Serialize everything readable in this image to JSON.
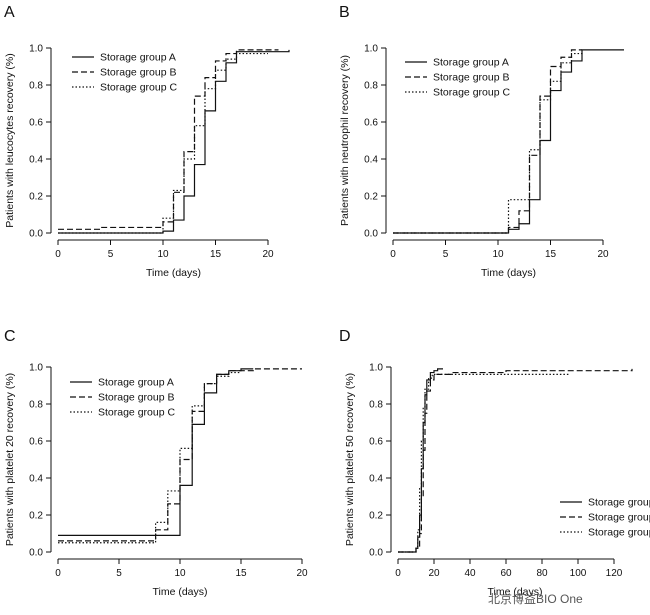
{
  "watermark": "北京博益BIO One",
  "chart_data": [
    {
      "type": "line",
      "step": true,
      "panel": "A",
      "xlabel": "Time (days)",
      "ylabel": "Patients with leucocytes recovery (%)",
      "xlim": [
        0,
        22
      ],
      "ylim": [
        0,
        1
      ],
      "xticks": [
        0,
        5,
        10,
        15,
        20
      ],
      "yticks": [
        0.0,
        0.2,
        0.4,
        0.6,
        0.8,
        1.0
      ],
      "xtick_labels": [
        "0",
        "5",
        "10",
        "15",
        "20"
      ],
      "ytick_labels": [
        "0.0",
        "0.2",
        "0.4",
        "0.6",
        "0.8",
        "1.0"
      ],
      "legend_position": "top-left",
      "series": [
        {
          "name": "Storage group A",
          "dash": "solid",
          "x": [
            0,
            10,
            11,
            12,
            13,
            14,
            15,
            16,
            17,
            22
          ],
          "y": [
            0.0,
            0.01,
            0.07,
            0.2,
            0.37,
            0.66,
            0.82,
            0.92,
            0.98,
            0.99
          ]
        },
        {
          "name": "Storage group B",
          "dash": "dashed",
          "x": [
            0,
            4,
            10,
            11,
            12,
            13,
            14,
            15,
            16,
            17,
            21
          ],
          "y": [
            0.02,
            0.03,
            0.06,
            0.22,
            0.44,
            0.74,
            0.84,
            0.93,
            0.97,
            0.99,
            0.99
          ]
        },
        {
          "name": "Storage group C",
          "dash": "dotted",
          "x": [
            0,
            10,
            11,
            12,
            13,
            14,
            15,
            16,
            17,
            20
          ],
          "y": [
            0.0,
            0.08,
            0.23,
            0.4,
            0.58,
            0.78,
            0.88,
            0.94,
            0.97,
            0.97
          ]
        }
      ]
    },
    {
      "type": "line",
      "step": true,
      "panel": "B",
      "xlabel": "Time (days)",
      "ylabel": "Patients with neutrophil recovery (%)",
      "xlim": [
        0,
        22
      ],
      "ylim": [
        0,
        1
      ],
      "xticks": [
        0,
        5,
        10,
        15,
        20
      ],
      "yticks": [
        0.0,
        0.2,
        0.4,
        0.6,
        0.8,
        1.0
      ],
      "xtick_labels": [
        "0",
        "5",
        "10",
        "15",
        "20"
      ],
      "ytick_labels": [
        "0.0",
        "0.2",
        "0.4",
        "0.6",
        "0.8",
        "1.0"
      ],
      "legend_position": "top-left",
      "series": [
        {
          "name": "Storage group A",
          "dash": "solid",
          "x": [
            0,
            11,
            12,
            13,
            14,
            15,
            16,
            17,
            18,
            22
          ],
          "y": [
            0.0,
            0.02,
            0.05,
            0.18,
            0.5,
            0.77,
            0.87,
            0.93,
            0.99,
            0.99
          ]
        },
        {
          "name": "Storage group B",
          "dash": "dashed",
          "x": [
            0,
            11,
            12,
            13,
            14,
            15,
            16,
            17,
            18
          ],
          "y": [
            0.0,
            0.03,
            0.12,
            0.42,
            0.74,
            0.9,
            0.95,
            0.99,
            0.99
          ]
        },
        {
          "name": "Storage group C",
          "dash": "dotted",
          "x": [
            0,
            11,
            13,
            14,
            15,
            16,
            17,
            18
          ],
          "y": [
            0.0,
            0.18,
            0.45,
            0.72,
            0.82,
            0.92,
            0.97,
            0.98
          ]
        }
      ]
    },
    {
      "type": "line",
      "step": true,
      "panel": "C",
      "xlabel": "Time (days)",
      "ylabel": "Patients with platelet 20 recovery (%)",
      "xlim": [
        0,
        20
      ],
      "ylim": [
        0,
        1
      ],
      "xticks": [
        0,
        5,
        10,
        15,
        20
      ],
      "yticks": [
        0.0,
        0.2,
        0.4,
        0.6,
        0.8,
        1.0
      ],
      "xtick_labels": [
        "0",
        "5",
        "10",
        "15",
        "20"
      ],
      "ytick_labels": [
        "0.0",
        "0.2",
        "0.4",
        "0.6",
        "0.8",
        "1.0"
      ],
      "legend_position": "top-left",
      "series": [
        {
          "name": "Storage group A",
          "dash": "solid",
          "x": [
            0,
            9,
            10,
            11,
            12,
            13,
            14,
            15,
            16
          ],
          "y": [
            0.09,
            0.09,
            0.36,
            0.69,
            0.86,
            0.96,
            0.98,
            0.99,
            0.99
          ]
        },
        {
          "name": "Storage group B",
          "dash": "dashed",
          "x": [
            0,
            8,
            9,
            10,
            11,
            12,
            13,
            14,
            16,
            20
          ],
          "y": [
            0.06,
            0.12,
            0.26,
            0.5,
            0.76,
            0.91,
            0.96,
            0.98,
            0.99,
            0.99
          ]
        },
        {
          "name": "Storage group C",
          "dash": "dotted",
          "x": [
            0,
            8,
            9,
            10,
            11,
            12,
            13,
            14,
            15
          ],
          "y": [
            0.05,
            0.16,
            0.33,
            0.56,
            0.79,
            0.91,
            0.95,
            0.97,
            0.97
          ]
        }
      ]
    },
    {
      "type": "line",
      "step": true,
      "panel": "D",
      "xlabel": "Time (days)",
      "ylabel": "Patients with platelet 50 recovery (%)",
      "xlim": [
        0,
        130
      ],
      "ylim": [
        0,
        1
      ],
      "xticks": [
        0,
        20,
        40,
        60,
        80,
        100,
        120
      ],
      "yticks": [
        0.0,
        0.2,
        0.4,
        0.6,
        0.8,
        1.0
      ],
      "xtick_labels": [
        "0",
        "20",
        "40",
        "60",
        "80",
        "100",
        "120"
      ],
      "ytick_labels": [
        "0.0",
        "0.2",
        "0.4",
        "0.6",
        "0.8",
        "1.0"
      ],
      "legend_position": "bottom-right",
      "series": [
        {
          "name": "Storage group",
          "dash": "solid",
          "x": [
            0,
            10,
            11,
            12,
            13,
            14,
            15,
            16,
            18,
            20,
            22,
            25
          ],
          "y": [
            0.0,
            0.02,
            0.08,
            0.2,
            0.45,
            0.7,
            0.85,
            0.93,
            0.97,
            0.98,
            0.99,
            0.99
          ]
        },
        {
          "name": "Storage group",
          "dash": "dashed",
          "x": [
            0,
            10,
            12,
            13,
            14,
            15,
            16,
            18,
            20,
            30,
            60,
            130
          ],
          "y": [
            0.0,
            0.02,
            0.1,
            0.3,
            0.55,
            0.75,
            0.87,
            0.93,
            0.96,
            0.97,
            0.98,
            0.99
          ]
        },
        {
          "name": "Storage group",
          "dash": "dotted",
          "x": [
            0,
            10,
            11,
            12,
            13,
            14,
            15,
            17,
            19,
            22,
            95
          ],
          "y": [
            0.0,
            0.03,
            0.12,
            0.35,
            0.6,
            0.78,
            0.88,
            0.94,
            0.96,
            0.96,
            0.96
          ]
        }
      ]
    }
  ]
}
